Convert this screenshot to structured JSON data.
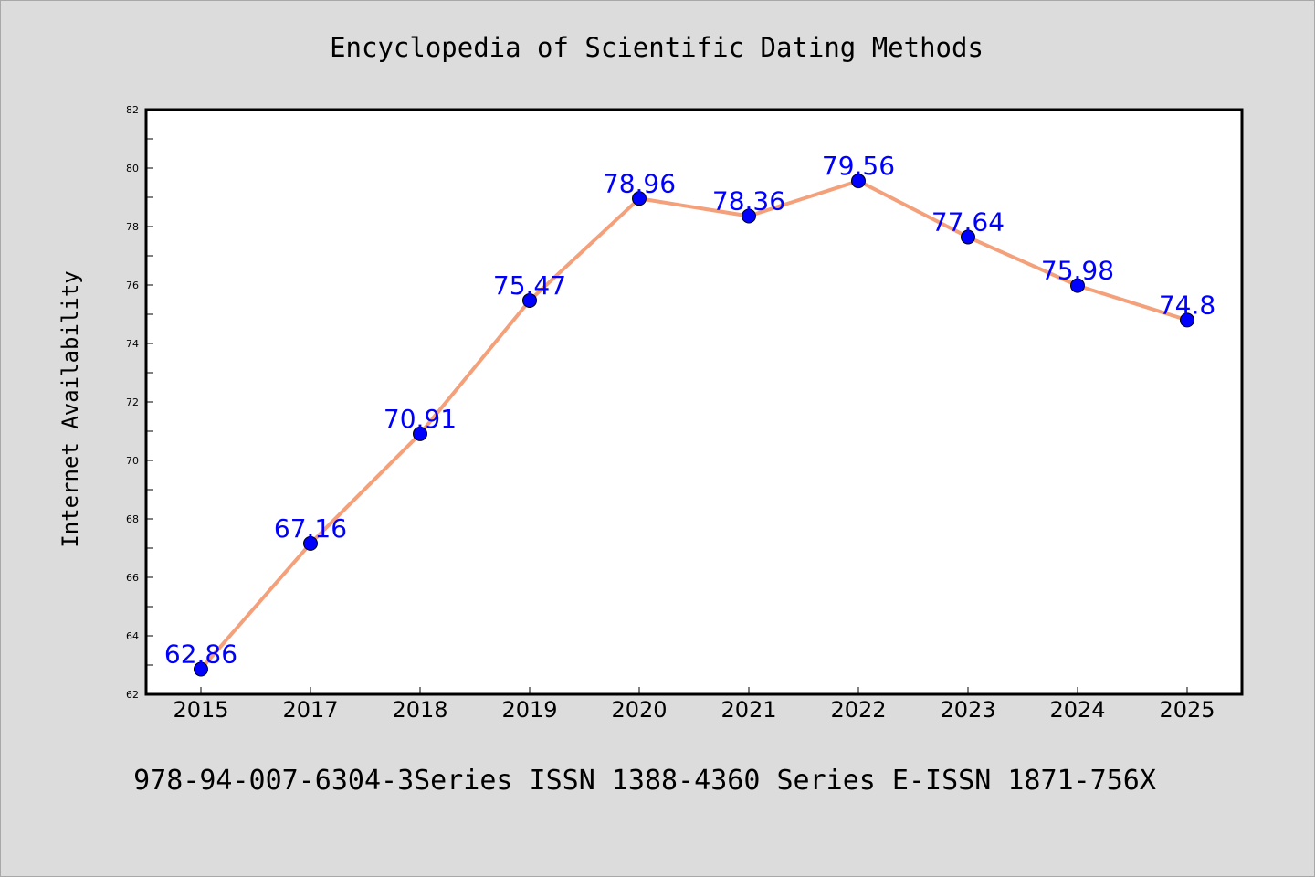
{
  "chart_data": {
    "type": "line",
    "title": "Encyclopedia of Scientific Dating Methods",
    "ylabel": "Internet Availability",
    "xlabel": "",
    "footer": "978-94-007-6304-3Series ISSN 1388-4360 Series E-ISSN 1871-756X",
    "categories": [
      "2015",
      "2017",
      "2018",
      "2019",
      "2020",
      "2021",
      "2022",
      "2023",
      "2024",
      "2025"
    ],
    "series": [
      {
        "values": [
          62.86,
          67.16,
          70.91,
          75.47,
          78.96,
          78.36,
          79.56,
          77.64,
          75.98,
          74.8
        ]
      }
    ],
    "data_labels": [
      "62.86",
      "67.16",
      "70.91",
      "75.47",
      "78.96",
      "78.36",
      "79.56",
      "77.64",
      "75.98",
      "74.8"
    ],
    "ylim": [
      62,
      82
    ],
    "yticks": [
      "62",
      "64",
      "66",
      "68",
      "70",
      "72",
      "74",
      "76",
      "78",
      "80",
      "82"
    ],
    "grid": false,
    "colors": {
      "background": "#dcdcdc",
      "plot_background": "#ffffff",
      "line": "#f4a07a",
      "marker": "#0000ff",
      "data_label": "#0000ff",
      "text": "#000000"
    }
  }
}
